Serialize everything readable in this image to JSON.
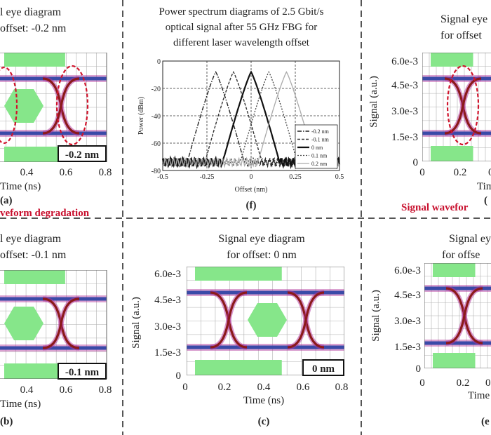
{
  "colors": {
    "mask": "#86e68a",
    "eye_cross": "#8b1a1a",
    "eye_band": "#3a4aa8",
    "eye_glow": "#b0309a",
    "degradation_ellipse": "#d0142c",
    "grid": "#b0b0b0",
    "divider": "#555555",
    "degradation_text": "#c8102e"
  },
  "panels": {
    "a": {
      "title_line1": "l eye diagram",
      "title_line2": "offset: -0.2 nm",
      "box_label": "-0.2 nm",
      "xlabel": "Time (ns)",
      "xticks": [
        "0.4",
        "0.6",
        "0.8"
      ],
      "letter": "(a)",
      "note": "veform degradation"
    },
    "b": {
      "title_line1": "l eye diagram",
      "title_line2": "offset: -0.1 nm",
      "box_label": "-0.1 nm",
      "xlabel": "Time (ns)",
      "xticks": [
        "0.4",
        "0.6",
        "0.8"
      ],
      "letter": "(b)"
    },
    "c": {
      "title_line1": "Signal eye diagram",
      "title_line2": "for offset: 0 nm",
      "box_label": "0 nm",
      "ylabel": "Signal (a.u.)",
      "yticks": [
        "6.0e-3",
        "4.5e-3",
        "3.0e-3",
        "1.5e-3",
        "0"
      ],
      "xlabel": "Time (ns)",
      "xticks": [
        "0",
        "0.2",
        "0.4",
        "0.6",
        "0.8"
      ],
      "letter": "(c)"
    },
    "d": {
      "title_line1": "Signal eye",
      "title_line2": "for offset",
      "ylabel": "Signal (a.u.)",
      "yticks": [
        "6.0e-3",
        "4.5e-3",
        "3.0e-3",
        "1.5e-3",
        "0"
      ],
      "xticks": [
        "0",
        "0.2",
        "0"
      ],
      "xlabel": "Tim",
      "letter": "(",
      "note": "Signal wavefor"
    },
    "e": {
      "title_line1": "Signal ey",
      "title_line2": "for offse",
      "ylabel": "Signal (a.u.)",
      "yticks": [
        "6.0e-3",
        "4.5e-3",
        "3.0e-3",
        "1.5e-3",
        "0"
      ],
      "xticks": [
        "0",
        "0.2",
        "0"
      ],
      "xlabel": "Time",
      "letter": "(e"
    },
    "f": {
      "title_line1": "Power spectrum diagrams of 2.5 Gbit/s",
      "title_line2": "optical signal after 55 GHz FBG for",
      "title_line3": "different laser wavelength offset",
      "letter": "(f)"
    }
  },
  "chart_data": {
    "type": "line",
    "title": "Power spectrum diagrams of 2.5 Gbit/s optical signal after 55 GHz FBG for different laser wavelength offset",
    "xlabel": "Offset (nm)",
    "ylabel": "Power (dBm)",
    "xlim": [
      -0.5,
      0.5
    ],
    "ylim": [
      -80,
      0
    ],
    "xticks": [
      "-0.5",
      "-0.25",
      "0",
      "0.25",
      "0.5"
    ],
    "yticks": [
      "0",
      "-20",
      "-40",
      "-60",
      "-80"
    ],
    "grid": true,
    "legend_position": "bottom-right",
    "series": [
      {
        "name": "-0.2 nm",
        "peak_x": -0.2,
        "peak_y": -8
      },
      {
        "name": "-0.1 nm",
        "peak_x": -0.1,
        "peak_y": -8
      },
      {
        "name": "0 nm",
        "peak_x": 0.0,
        "peak_y": -8
      },
      {
        "name": "0.1 nm",
        "peak_x": 0.1,
        "peak_y": -8
      },
      {
        "name": "0.2 nm",
        "peak_x": 0.2,
        "peak_y": -8
      }
    ]
  }
}
